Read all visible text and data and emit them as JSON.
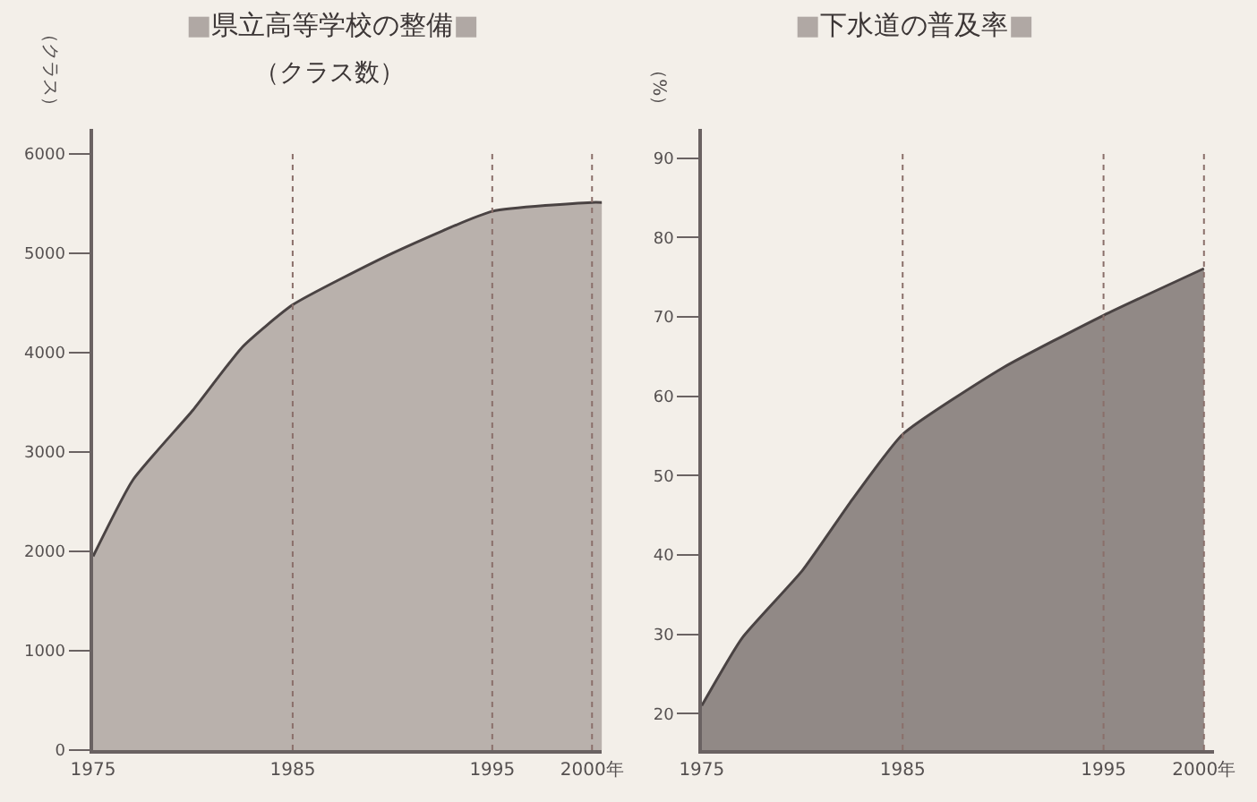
{
  "chart_data": [
    {
      "type": "area",
      "title": "■県立高等学校の整備■",
      "subtitle": "（クラス数）",
      "ylabel": "（クラス）",
      "x": [
        1975,
        1977,
        1980,
        1982.5,
        1985,
        1990,
        1995,
        2000,
        2000.5
      ],
      "series": [
        {
          "color": "#b9b1ac",
          "values": [
            1950,
            2720,
            3420,
            4060,
            4480,
            5000,
            5420,
            5510,
            5510
          ]
        }
      ],
      "xlim": [
        1975,
        2000.5
      ],
      "xticks": [
        1975,
        1985,
        1995,
        {
          "value": 2000,
          "label": "2000年"
        }
      ],
      "ylim": [
        0,
        6250
      ],
      "yticks": [
        0,
        1000,
        2000,
        3000,
        4000,
        5000,
        6000
      ],
      "ref_lines": [
        {
          "axis": "x",
          "value": 1985,
          "line_style": "dotted",
          "color": "#8a6f6a"
        },
        {
          "axis": "x",
          "value": 1995,
          "line_style": "dotted",
          "color": "#8a6f6a"
        },
        {
          "axis": "x",
          "value": 2000,
          "line_style": "dotted",
          "color": "#8a6f6a"
        }
      ],
      "grid": false
    },
    {
      "type": "area",
      "title": "■下水道の普及率■",
      "ylabel": "（%）",
      "x": [
        1975,
        1977,
        1980,
        1982.5,
        1985,
        1990,
        1995,
        2000
      ],
      "series": [
        {
          "color": "#918986",
          "values": [
            21,
            29.5,
            38,
            47,
            55.2,
            63.6,
            70.2,
            76.1
          ]
        }
      ],
      "xlim": [
        1975,
        2000.5
      ],
      "xticks": [
        1975,
        1985,
        1995,
        {
          "value": 2000,
          "label": "2000年"
        }
      ],
      "ylim": [
        15.4,
        93.7
      ],
      "yticks": [
        20,
        30,
        40,
        50,
        60,
        70,
        80,
        90
      ],
      "ref_lines": [
        {
          "axis": "x",
          "value": 1985,
          "line_style": "dotted",
          "color": "#8a6f6a"
        },
        {
          "axis": "x",
          "value": 1995,
          "line_style": "dotted",
          "color": "#8a6f6a"
        },
        {
          "axis": "x",
          "value": 2000,
          "line_style": "dotted",
          "color": "#8a6f6a"
        }
      ],
      "grid": false
    }
  ]
}
